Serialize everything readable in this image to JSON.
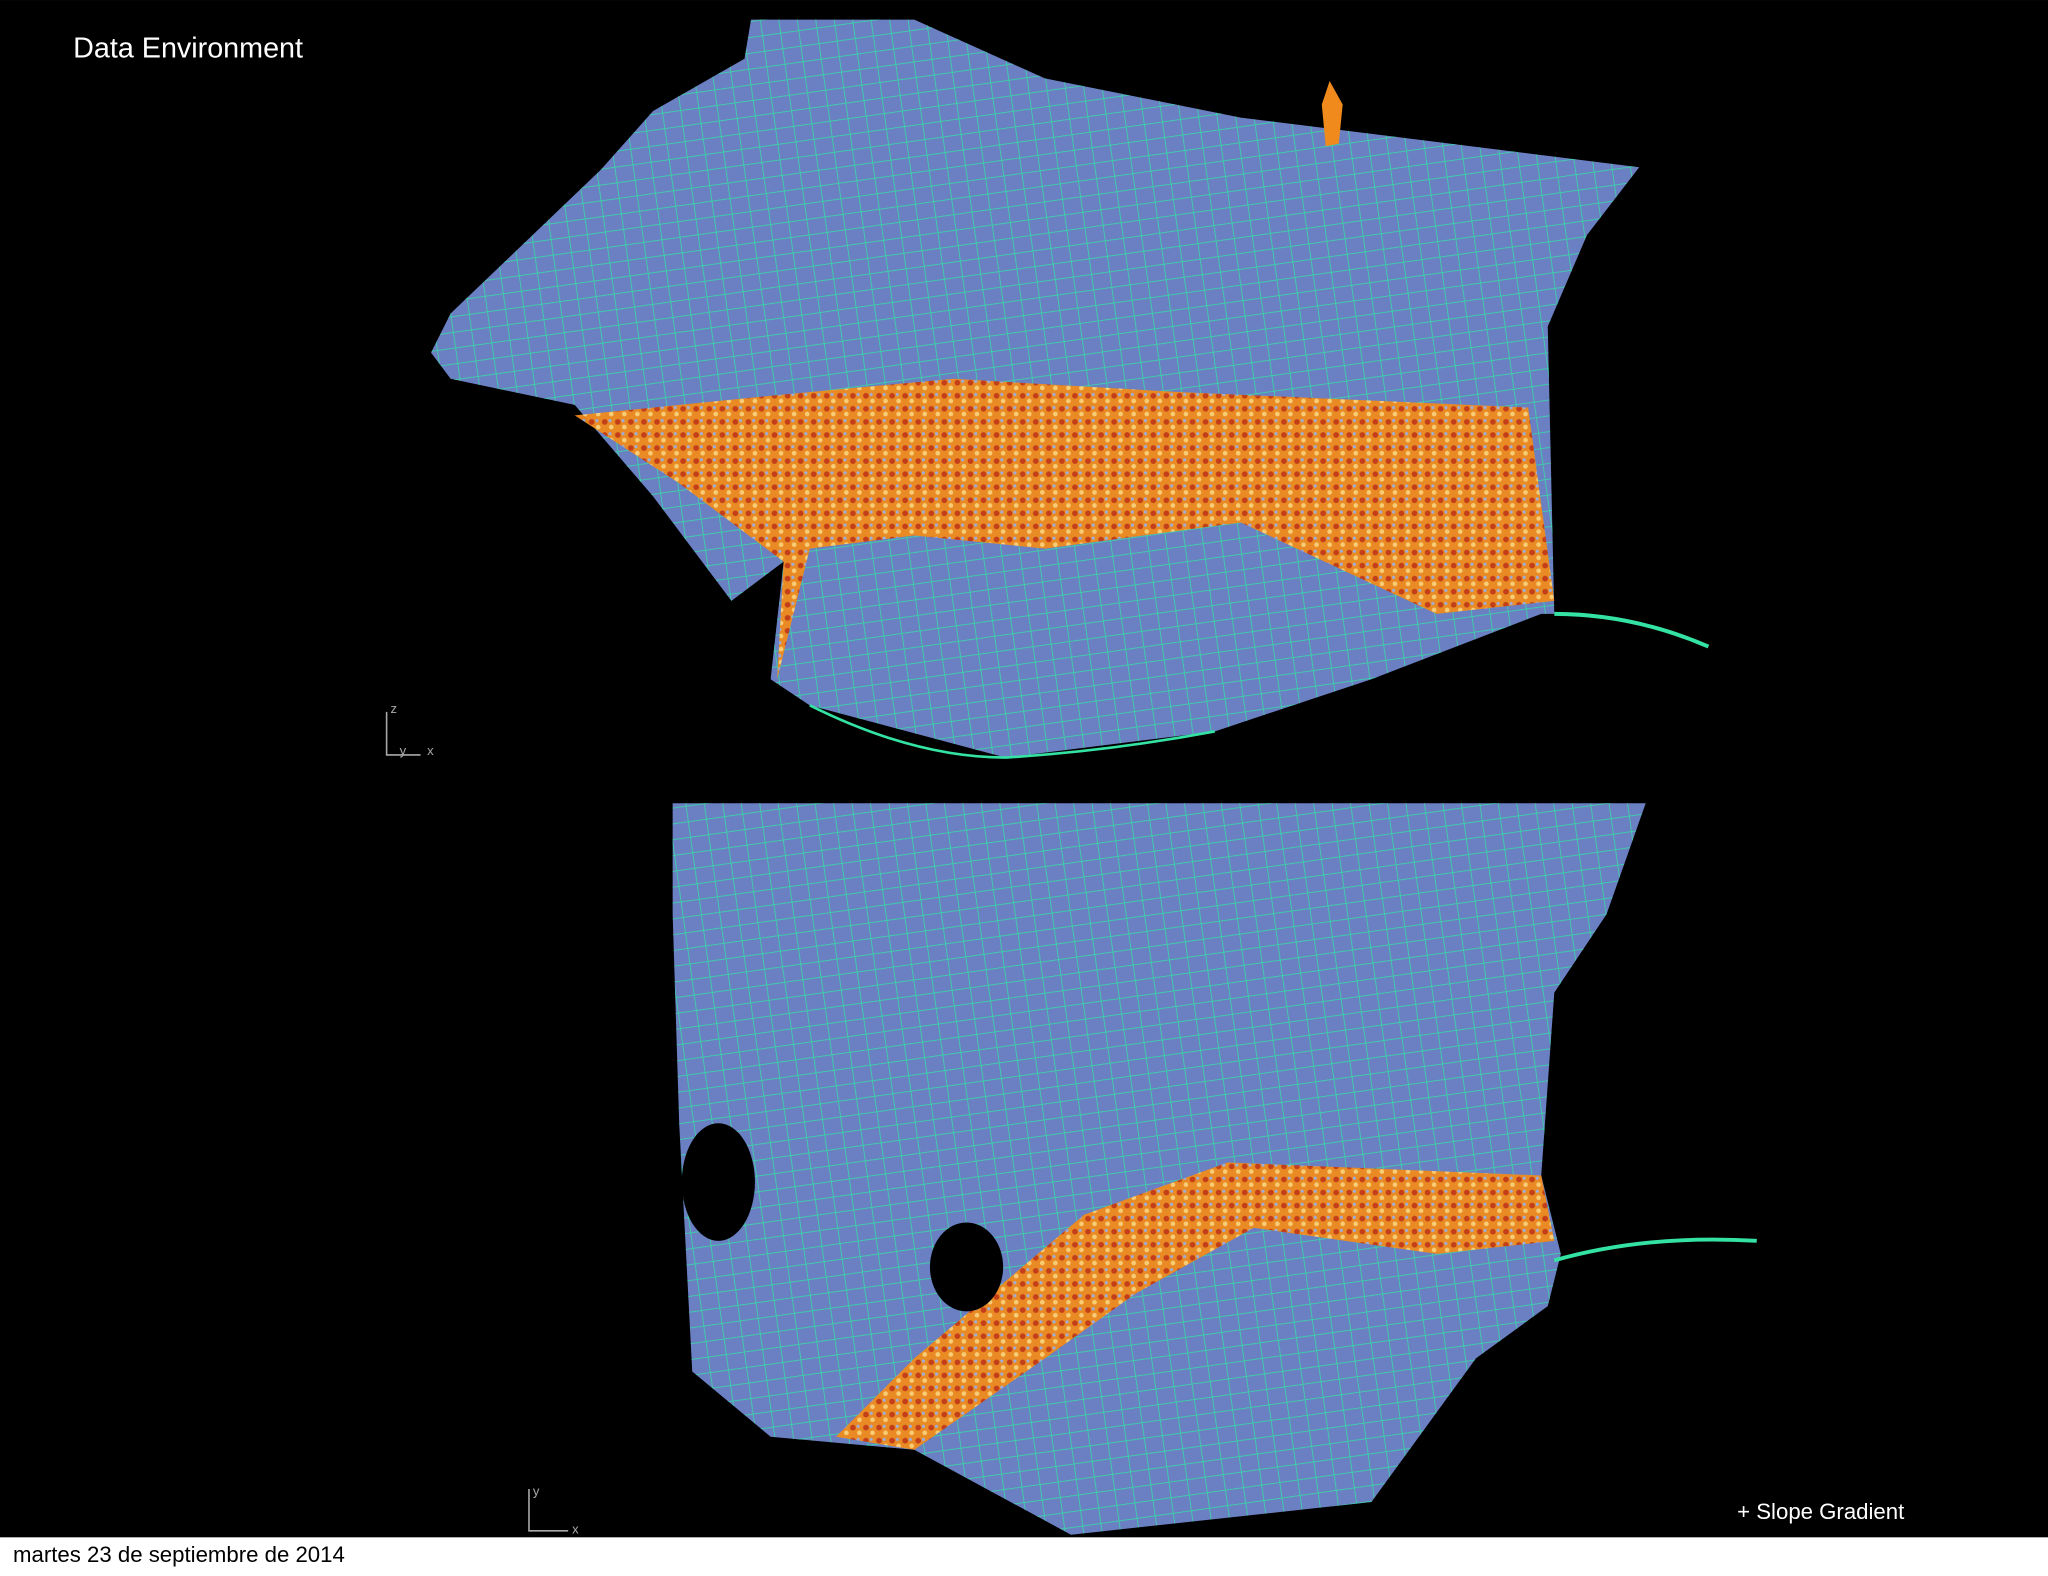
{
  "title": "Data Environment",
  "annotation": "+ Slope Gradient",
  "footer_date": "martes 23 de septiembre de 2014",
  "axis_labels": {
    "top": [
      "z",
      "y",
      "x"
    ],
    "bottom": [
      "y",
      "x"
    ]
  }
}
